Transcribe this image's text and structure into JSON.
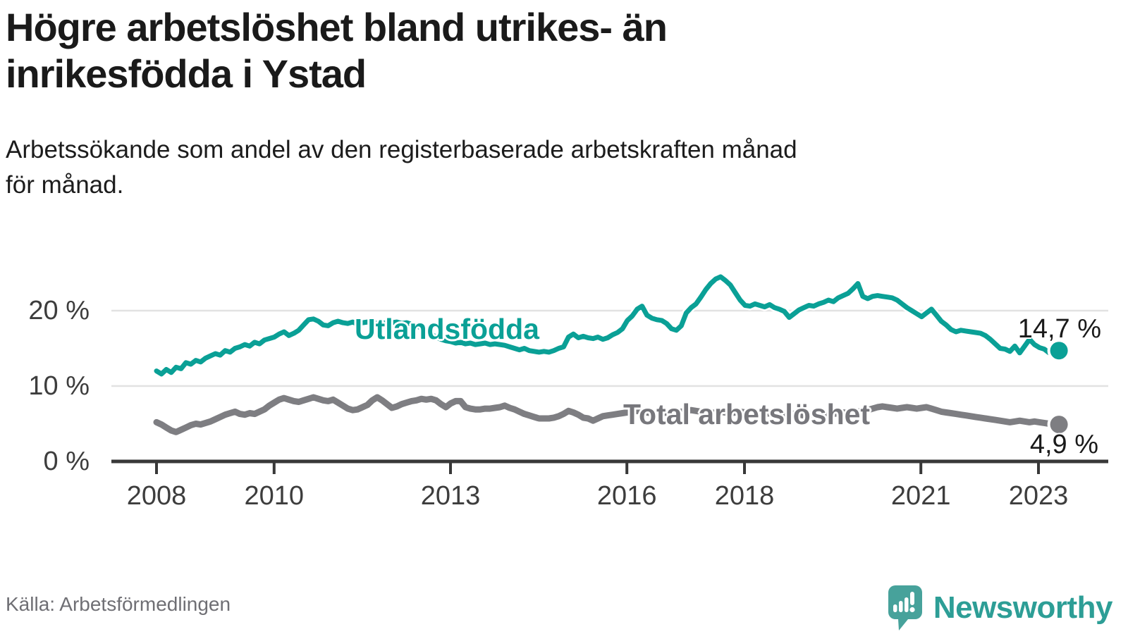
{
  "header": {
    "title": "Högre arbetslöshet bland utrikes- än inrikesfödda i Ystad",
    "subtitle_line1": "Arbetssökande som andel av den registerbaserade arbetskraften månad",
    "subtitle_line2": "för månad."
  },
  "footer": {
    "source": "Källa: Arbetsförmedlingen",
    "brand": "Newsworthy"
  },
  "colors": {
    "teal_line": "#0aa096",
    "gray_line": "#7e7e82",
    "title_text": "#1a1a1a",
    "axis_text": "#3d3d3d",
    "grid_line": "#e2e2e2",
    "axis_line": "#383838",
    "source_text": "#6f6f74",
    "logo_teal": "#47a29b"
  },
  "chart_data": {
    "type": "line",
    "title": "Högre arbetslöshet bland utrikes- än inrikesfödda i Ystad",
    "subtitle": "Arbetssökande som andel av den registerbaserade arbetskraften månad för månad.",
    "source": "Källa: Arbetsförmedlingen",
    "unit": "%",
    "frequency": "monthly",
    "x_start": "2008-01",
    "x_end": "2023-05",
    "ylim": [
      0,
      28
    ],
    "grid": "horizontal",
    "y_ticks": [
      0,
      10,
      20
    ],
    "y_tick_labels": [
      "0 %",
      "10 %",
      "20 %"
    ],
    "x_tick_years": [
      2008,
      2010,
      2013,
      2016,
      2018,
      2021,
      2023
    ],
    "legend_position": "inline-labels",
    "series": [
      {
        "name": "Utlandsfödda",
        "color": "#0aa096",
        "end_label": "14,7 %",
        "end_value": 14.7,
        "values": [
          12.0,
          11.6,
          12.2,
          11.8,
          12.5,
          12.3,
          13.1,
          12.9,
          13.4,
          13.2,
          13.7,
          14.0,
          14.3,
          14.1,
          14.7,
          14.5,
          15.0,
          15.2,
          15.5,
          15.3,
          15.8,
          15.6,
          16.1,
          16.3,
          16.5,
          16.9,
          17.2,
          16.7,
          17.0,
          17.4,
          18.1,
          18.8,
          18.9,
          18.6,
          18.1,
          18.0,
          18.4,
          18.6,
          18.4,
          18.3,
          18.5,
          18.2,
          18.4,
          18.5,
          18.4,
          18.3,
          18.4,
          18.3,
          18.4,
          18.5,
          18.3,
          18.4,
          18.2,
          18.0,
          17.7,
          17.3,
          16.9,
          16.5,
          16.2,
          16.0,
          15.9,
          15.7,
          15.8,
          15.6,
          15.7,
          15.5,
          15.6,
          15.7,
          15.5,
          15.6,
          15.5,
          15.4,
          15.2,
          15.0,
          14.8,
          15.0,
          14.7,
          14.6,
          14.5,
          14.6,
          14.5,
          14.7,
          15.0,
          15.2,
          16.5,
          16.9,
          16.4,
          16.6,
          16.4,
          16.3,
          16.5,
          16.2,
          16.4,
          16.8,
          17.1,
          17.6,
          18.7,
          19.3,
          20.2,
          20.6,
          19.4,
          19.0,
          18.8,
          18.7,
          18.3,
          17.6,
          17.4,
          18.0,
          19.7,
          20.4,
          20.9,
          21.8,
          22.8,
          23.6,
          24.2,
          24.5,
          24.0,
          23.4,
          22.4,
          21.4,
          20.7,
          20.6,
          20.9,
          20.7,
          20.5,
          20.8,
          20.4,
          20.2,
          19.9,
          19.1,
          19.6,
          20.1,
          20.4,
          20.7,
          20.6,
          20.9,
          21.1,
          21.4,
          21.2,
          21.7,
          22.0,
          22.3,
          22.9,
          23.6,
          21.9,
          21.6,
          21.9,
          22.0,
          21.9,
          21.8,
          21.7,
          21.4,
          20.9,
          20.4,
          20.0,
          19.6,
          19.2,
          19.7,
          20.2,
          19.4,
          18.6,
          18.1,
          17.5,
          17.2,
          17.4,
          17.3,
          17.2,
          17.1,
          17.0,
          16.7,
          16.2,
          15.6,
          15.0,
          14.9,
          14.6,
          15.3,
          14.4,
          15.3,
          16.2,
          15.5,
          15.1,
          14.9,
          14.4,
          14.9,
          14.7
        ]
      },
      {
        "name": "Total arbetslöshet",
        "color": "#7e7e82",
        "end_label": "4,9 %",
        "end_value": 4.9,
        "values": [
          5.2,
          4.9,
          4.5,
          4.1,
          3.9,
          4.2,
          4.5,
          4.8,
          5.0,
          4.9,
          5.1,
          5.3,
          5.6,
          5.9,
          6.2,
          6.4,
          6.6,
          6.3,
          6.2,
          6.4,
          6.3,
          6.6,
          6.9,
          7.4,
          7.8,
          8.2,
          8.4,
          8.2,
          8.0,
          7.9,
          8.1,
          8.3,
          8.5,
          8.3,
          8.1,
          8.0,
          8.2,
          7.8,
          7.4,
          7.0,
          6.8,
          6.9,
          7.2,
          7.5,
          8.1,
          8.5,
          8.1,
          7.6,
          7.1,
          7.3,
          7.6,
          7.8,
          8.0,
          8.1,
          8.3,
          8.2,
          8.3,
          8.1,
          7.6,
          7.2,
          7.7,
          8.0,
          8.0,
          7.2,
          7.0,
          6.9,
          6.9,
          7.0,
          7.0,
          7.1,
          7.2,
          7.4,
          7.1,
          6.9,
          6.6,
          6.3,
          6.1,
          5.9,
          5.7,
          5.7,
          5.7,
          5.8,
          6.0,
          6.3,
          6.7,
          6.5,
          6.2,
          5.8,
          5.7,
          5.4,
          5.7,
          6.0,
          6.1,
          6.2,
          6.3,
          6.4,
          6.5,
          6.6,
          6.7,
          6.6,
          6.5,
          6.4,
          6.3,
          6.4,
          6.5,
          6.6,
          6.5,
          6.6,
          6.7,
          6.8,
          6.7,
          6.6,
          6.5,
          6.4,
          6.5,
          6.6,
          6.5,
          6.4,
          6.5,
          6.6,
          6.5,
          6.4,
          6.3,
          6.2,
          6.3,
          6.4,
          6.3,
          6.2,
          6.3,
          6.4,
          6.3,
          6.2,
          6.1,
          6.2,
          6.3,
          6.2,
          6.1,
          6.2,
          6.3,
          6.4,
          6.5,
          6.4,
          6.5,
          6.6,
          6.7,
          6.8,
          7.0,
          7.2,
          7.3,
          7.2,
          7.1,
          7.0,
          7.1,
          7.2,
          7.1,
          7.0,
          7.1,
          7.2,
          7.0,
          6.8,
          6.6,
          6.5,
          6.4,
          6.3,
          6.2,
          6.1,
          6.0,
          5.9,
          5.8,
          5.7,
          5.6,
          5.5,
          5.4,
          5.3,
          5.2,
          5.3,
          5.4,
          5.3,
          5.2,
          5.3,
          5.2,
          5.1,
          5.0,
          4.9,
          4.9
        ]
      }
    ]
  }
}
